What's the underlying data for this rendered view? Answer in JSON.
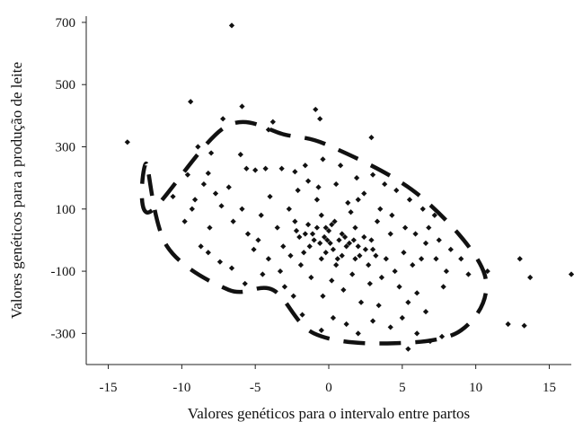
{
  "chart_data": {
    "type": "scatter",
    "title": "",
    "xlabel": "Valores genéticos para o intervalo entre partos",
    "ylabel": "Valores genéticos para a produção de leite",
    "xlim": [
      -16.5,
      16.5
    ],
    "ylim": [
      -400,
      720
    ],
    "xticks": [
      -15,
      -10,
      -5,
      0,
      5,
      10,
      15
    ],
    "xtick_labels": [
      "-15",
      "-10",
      "-5",
      "0",
      "5",
      "10",
      "15"
    ],
    "yticks": [
      -300,
      -100,
      100,
      300,
      500,
      700
    ],
    "ytick_labels": [
      "-300",
      "-100",
      "100",
      "300",
      "500",
      "700"
    ],
    "grid": false,
    "legend": "none",
    "ellipse": {
      "style": "dashed",
      "center": [
        -1.0,
        0.0
      ],
      "description": "dashed confidence ellipse tilted with negative slope",
      "axis_points": [
        [
          -12.4,
          245
        ],
        [
          -12.2,
          90
        ],
        [
          -7.0,
          365
        ],
        [
          -2.9,
          338
        ],
        [
          0.2,
          300
        ],
        [
          6.2,
          142
        ],
        [
          10.6,
          -110
        ],
        [
          9.0,
          -290
        ],
        [
          4.0,
          -332
        ],
        [
          -1.0,
          -300
        ],
        [
          -3.8,
          -160
        ],
        [
          -6.8,
          -160
        ],
        [
          -11.0,
          -20
        ]
      ]
    },
    "points": [
      [
        -6.6,
        690
      ],
      [
        -13.7,
        315
      ],
      [
        -9.4,
        445
      ],
      [
        -5.9,
        430
      ],
      [
        -7.2,
        390
      ],
      [
        -0.9,
        420
      ],
      [
        -3.8,
        380
      ],
      [
        -4.1,
        355
      ],
      [
        -0.6,
        390
      ],
      [
        2.9,
        330
      ],
      [
        -8.0,
        280
      ],
      [
        -8.9,
        300
      ],
      [
        -9.6,
        210
      ],
      [
        -8.2,
        215
      ],
      [
        -6.0,
        275
      ],
      [
        -5.6,
        230
      ],
      [
        -5.0,
        225
      ],
      [
        -4.3,
        230
      ],
      [
        -3.2,
        230
      ],
      [
        -2.3,
        220
      ],
      [
        -1.6,
        240
      ],
      [
        -0.4,
        260
      ],
      [
        0.8,
        240
      ],
      [
        1.9,
        200
      ],
      [
        3.0,
        210
      ],
      [
        3.8,
        180
      ],
      [
        2.4,
        150
      ],
      [
        4.6,
        160
      ],
      [
        5.5,
        130
      ],
      [
        6.4,
        100
      ],
      [
        7.2,
        80
      ],
      [
        6.8,
        40
      ],
      [
        7.5,
        0
      ],
      [
        8.3,
        -30
      ],
      [
        9.0,
        -60
      ],
      [
        8.0,
        -100
      ],
      [
        9.5,
        -110
      ],
      [
        7.8,
        -150
      ],
      [
        10.8,
        -100
      ],
      [
        13.0,
        -60
      ],
      [
        13.7,
        -120
      ],
      [
        16.5,
        -110
      ],
      [
        12.2,
        -270
      ],
      [
        13.3,
        -275
      ],
      [
        7.7,
        -310
      ],
      [
        6.9,
        -325
      ],
      [
        5.4,
        -350
      ],
      [
        6.0,
        -300
      ],
      [
        5.0,
        -250
      ],
      [
        4.2,
        -280
      ],
      [
        3.0,
        -260
      ],
      [
        2.0,
        -300
      ],
      [
        1.2,
        -270
      ],
      [
        0.3,
        -250
      ],
      [
        -0.5,
        -290
      ],
      [
        -1.8,
        -240
      ],
      [
        -2.4,
        -180
      ],
      [
        -3.0,
        -150
      ],
      [
        -4.5,
        -110
      ],
      [
        -5.7,
        -140
      ],
      [
        -6.6,
        -90
      ],
      [
        -7.4,
        -70
      ],
      [
        -8.2,
        -40
      ],
      [
        -8.7,
        -20
      ],
      [
        -10.6,
        140
      ],
      [
        -9.3,
        100
      ],
      [
        -9.8,
        60
      ],
      [
        -8.1,
        40
      ],
      [
        -7.3,
        110
      ],
      [
        -6.5,
        60
      ],
      [
        -5.5,
        20
      ],
      [
        -5.1,
        -30
      ],
      [
        -4.6,
        80
      ],
      [
        -4.0,
        140
      ],
      [
        -3.5,
        40
      ],
      [
        -3.1,
        -20
      ],
      [
        -2.7,
        100
      ],
      [
        -2.3,
        60
      ],
      [
        -2.0,
        10
      ],
      [
        -1.7,
        -40
      ],
      [
        -1.4,
        50
      ],
      [
        -1.1,
        20
      ],
      [
        -0.8,
        130
      ],
      [
        -0.5,
        80
      ],
      [
        -0.2,
        40
      ],
      [
        0.1,
        -10
      ],
      [
        0.4,
        60
      ],
      [
        0.6,
        -60
      ],
      [
        0.9,
        20
      ],
      [
        1.2,
        -20
      ],
      [
        1.5,
        90
      ],
      [
        1.8,
        40
      ],
      [
        2.1,
        -50
      ],
      [
        2.4,
        10
      ],
      [
        2.7,
        -80
      ],
      [
        3.0,
        -30
      ],
      [
        3.3,
        60
      ],
      [
        3.6,
        -120
      ],
      [
        3.9,
        -60
      ],
      [
        4.2,
        20
      ],
      [
        4.5,
        -100
      ],
      [
        4.8,
        -150
      ],
      [
        5.1,
        -40
      ],
      [
        5.4,
        -200
      ],
      [
        5.7,
        -80
      ],
      [
        6.0,
        -170
      ],
      [
        6.3,
        -60
      ],
      [
        6.6,
        -230
      ],
      [
        1.0,
        -160
      ],
      [
        1.6,
        -110
      ],
      [
        2.2,
        -200
      ],
      [
        2.8,
        -140
      ],
      [
        3.4,
        -210
      ],
      [
        0.2,
        -130
      ],
      [
        -0.4,
        -180
      ],
      [
        -1.2,
        -120
      ],
      [
        -1.9,
        -80
      ],
      [
        -2.6,
        -50
      ],
      [
        -3.3,
        -100
      ],
      [
        -4.1,
        -60
      ],
      [
        -4.8,
        0
      ],
      [
        -5.9,
        100
      ],
      [
        -6.8,
        170
      ],
      [
        -7.7,
        150
      ],
      [
        -8.5,
        180
      ],
      [
        -9.1,
        130
      ],
      [
        -2.1,
        160
      ],
      [
        -1.4,
        190
      ],
      [
        -0.7,
        170
      ],
      [
        0.5,
        180
      ],
      [
        1.3,
        120
      ],
      [
        2.0,
        130
      ],
      [
        3.5,
        100
      ],
      [
        4.3,
        80
      ],
      [
        5.2,
        40
      ],
      [
        5.9,
        20
      ],
      [
        6.6,
        -10
      ],
      [
        7.3,
        -60
      ],
      [
        -0.1,
        0
      ],
      [
        0.0,
        30
      ],
      [
        0.3,
        -30
      ],
      [
        -0.3,
        10
      ],
      [
        0.7,
        0
      ],
      [
        -0.6,
        -10
      ],
      [
        1.1,
        10
      ],
      [
        -1.0,
        0
      ],
      [
        0.2,
        50
      ],
      [
        -0.2,
        -40
      ],
      [
        0.9,
        -50
      ],
      [
        -0.8,
        40
      ],
      [
        1.4,
        -10
      ],
      [
        -1.3,
        -20
      ],
      [
        1.7,
        0
      ],
      [
        -1.6,
        20
      ],
      [
        2.0,
        -20
      ],
      [
        0.5,
        -80
      ],
      [
        -0.5,
        -60
      ],
      [
        1.8,
        -60
      ],
      [
        2.5,
        -30
      ],
      [
        -2.2,
        30
      ],
      [
        2.9,
        0
      ],
      [
        3.2,
        -50
      ]
    ]
  }
}
